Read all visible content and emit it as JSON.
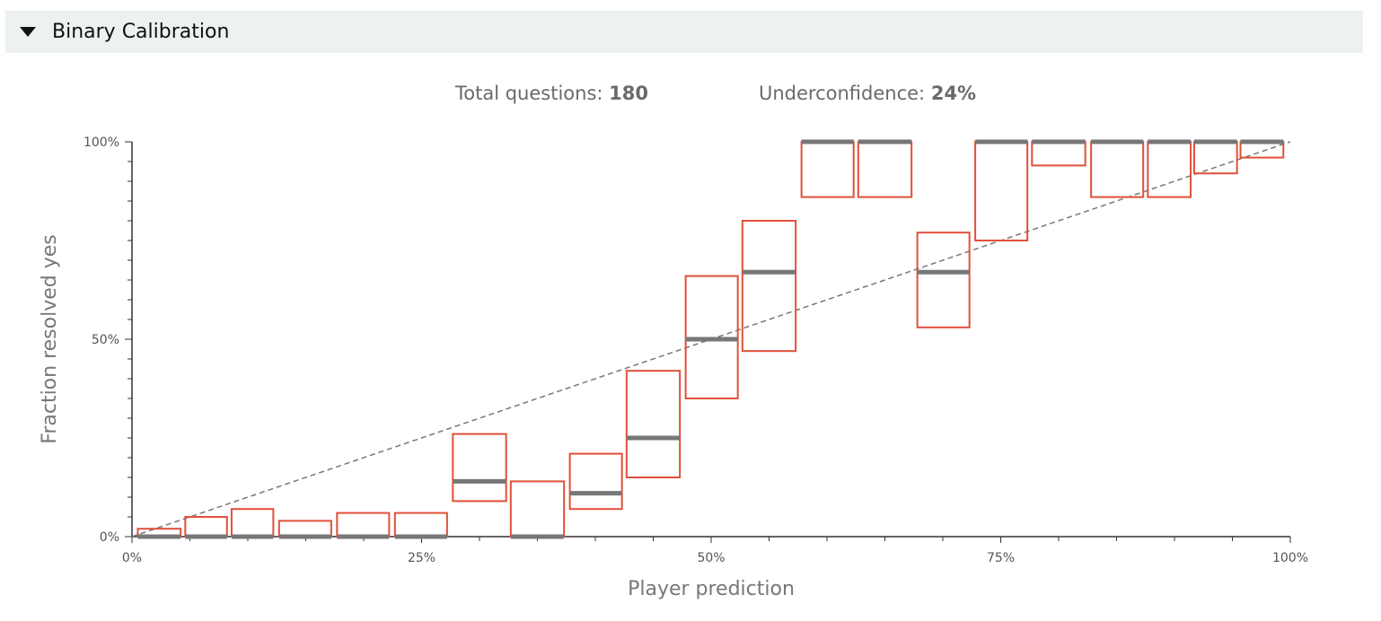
{
  "section": {
    "title": "Binary Calibration",
    "caret_icon": "triangle-down-icon"
  },
  "stats": {
    "total_label": "Total questions:",
    "total_value": "180",
    "underconfidence_label": "Underconfidence:",
    "underconfidence_value": "24%"
  },
  "colors": {
    "box": "#e0503a",
    "median": "#777777",
    "reference": "#777777",
    "axis": "#333333"
  },
  "chart_data": {
    "type": "box",
    "xlabel": "Player prediction",
    "ylabel": "Fraction resolved yes",
    "xlim": [
      0,
      100
    ],
    "ylim": [
      0,
      100
    ],
    "x_ticks": [
      "0%",
      "25%",
      "50%",
      "75%",
      "100%"
    ],
    "y_ticks": [
      "0%",
      "50%",
      "100%"
    ],
    "reference_line": {
      "from": [
        0,
        0
      ],
      "to": [
        100,
        100
      ],
      "style": "dashed"
    },
    "bins": [
      {
        "x_start": 0.5,
        "x_end": 4.2,
        "low": 0,
        "high": 2,
        "median": 0
      },
      {
        "x_start": 4.6,
        "x_end": 8.2,
        "low": 0,
        "high": 5,
        "median": 0
      },
      {
        "x_start": 8.6,
        "x_end": 12.2,
        "low": 0,
        "high": 7,
        "median": 0
      },
      {
        "x_start": 12.7,
        "x_end": 17.2,
        "low": 0,
        "high": 4,
        "median": 0
      },
      {
        "x_start": 17.7,
        "x_end": 22.2,
        "low": 0,
        "high": 6,
        "median": 0
      },
      {
        "x_start": 22.7,
        "x_end": 27.2,
        "low": 0,
        "high": 6,
        "median": 0
      },
      {
        "x_start": 27.7,
        "x_end": 32.3,
        "low": 9,
        "high": 26,
        "median": 14
      },
      {
        "x_start": 32.7,
        "x_end": 37.3,
        "low": 0,
        "high": 14,
        "median": 0
      },
      {
        "x_start": 37.8,
        "x_end": 42.3,
        "low": 7,
        "high": 21,
        "median": 11
      },
      {
        "x_start": 42.7,
        "x_end": 47.3,
        "low": 15,
        "high": 42,
        "median": 25
      },
      {
        "x_start": 47.8,
        "x_end": 52.3,
        "low": 35,
        "high": 66,
        "median": 50
      },
      {
        "x_start": 52.7,
        "x_end": 57.3,
        "low": 47,
        "high": 80,
        "median": 67
      },
      {
        "x_start": 57.8,
        "x_end": 62.3,
        "low": 86,
        "high": 100,
        "median": 100
      },
      {
        "x_start": 62.7,
        "x_end": 67.3,
        "low": 86,
        "high": 100,
        "median": 100
      },
      {
        "x_start": 67.8,
        "x_end": 72.3,
        "low": 53,
        "high": 77,
        "median": 67
      },
      {
        "x_start": 72.8,
        "x_end": 77.3,
        "low": 75,
        "high": 100,
        "median": 100
      },
      {
        "x_start": 77.7,
        "x_end": 82.3,
        "low": 94,
        "high": 100,
        "median": 100
      },
      {
        "x_start": 82.8,
        "x_end": 87.3,
        "low": 86,
        "high": 100,
        "median": 100
      },
      {
        "x_start": 87.7,
        "x_end": 91.4,
        "low": 86,
        "high": 100,
        "median": 100
      },
      {
        "x_start": 91.7,
        "x_end": 95.4,
        "low": 92,
        "high": 100,
        "median": 100
      },
      {
        "x_start": 95.7,
        "x_end": 99.4,
        "low": 96,
        "high": 100,
        "median": 100
      }
    ]
  }
}
